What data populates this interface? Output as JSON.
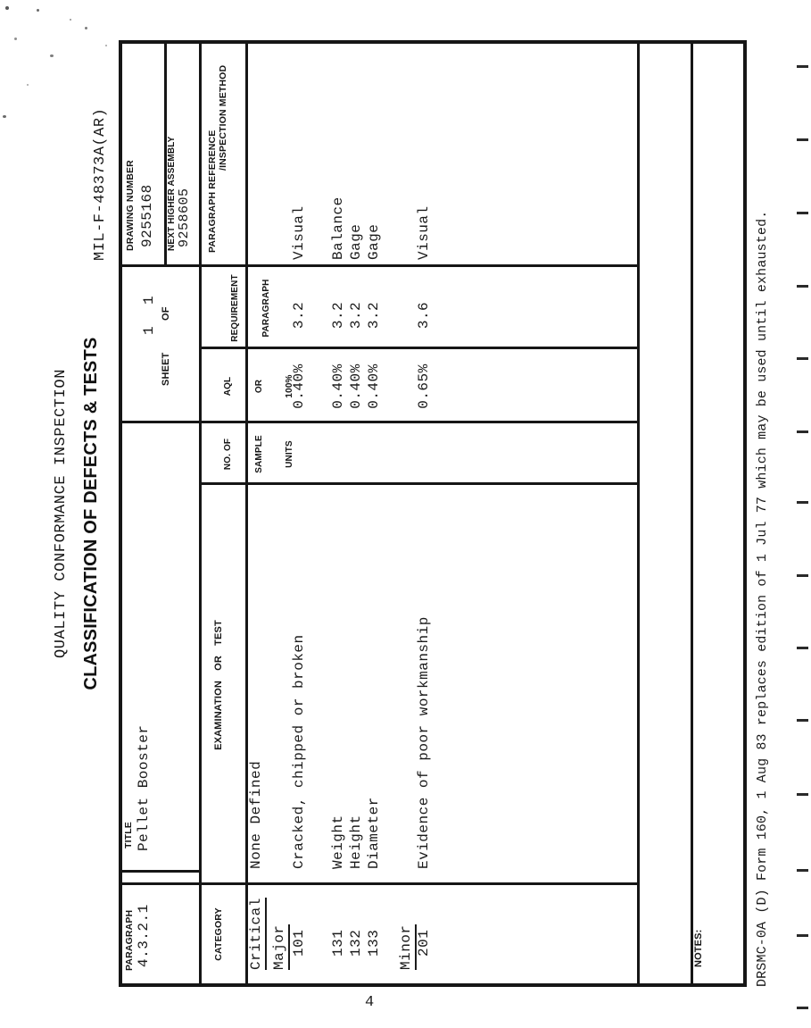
{
  "spec_number": "MIL-F-48373A(AR)",
  "page_number": "4",
  "titles": {
    "line1": "QUALITY CONFORMANCE INSPECTION",
    "line2": "CLASSIFICATION OF DEFECTS & TESTS"
  },
  "header": {
    "paragraph_label": "PARAGRAPH",
    "paragraph_value": "4.3.2.1",
    "title_label": "TITLE",
    "title_value": "Pellet Booster",
    "sheet_label": "SHEET",
    "sheet_value": "1",
    "of_label": "OF",
    "of_value": "1",
    "drawing_number_label": "DRAWING NUMBER",
    "drawing_number_value": "9255168",
    "next_higher_assembly_label": "NEXT HIGHER ASSEMBLY",
    "next_higher_assembly_value": "9258605"
  },
  "columns": {
    "category": "CATEGORY",
    "examination": "EXAMINATION OR TEST",
    "sample": [
      "NO. OF",
      "SAMPLE",
      "UNITS"
    ],
    "aql": [
      "AQL",
      "OR",
      "100%"
    ],
    "requirement": [
      "REQUIREMENT",
      "PARAGRAPH"
    ],
    "reference_line1": "PARAGRAPH REFERENCE",
    "reference_line2": "/INSPECTION METHOD"
  },
  "body_rows": [
    {
      "cat": "Critical",
      "underline": true,
      "indent": 0,
      "exam": "None Defined",
      "aql": "",
      "req": "",
      "ref": ""
    },
    {
      "cat": "Major",
      "underline": true,
      "indent": 0,
      "exam": "",
      "aql": "",
      "req": "",
      "ref": ""
    },
    {
      "cat": "101",
      "underline": false,
      "indent": 1,
      "exam": "Cracked, chipped or broken",
      "aql": "0.40%",
      "req": "3.2",
      "ref": "Visual"
    },
    {
      "cat": "131",
      "underline": false,
      "indent": 1,
      "exam": "Weight",
      "aql": "0.40%",
      "req": "3.2",
      "ref": "Balance"
    },
    {
      "cat": "132",
      "underline": false,
      "indent": 1,
      "exam": "Height",
      "aql": "0.40%",
      "req": "3.2",
      "ref": "Gage"
    },
    {
      "cat": "133",
      "underline": false,
      "indent": 1,
      "exam": "Diameter",
      "aql": "0.40%",
      "req": "3.2",
      "ref": "Gage"
    },
    {
      "cat": "Minor",
      "underline": true,
      "indent": 0,
      "exam": "",
      "aql": "",
      "req": "",
      "ref": ""
    },
    {
      "cat": "201",
      "underline": false,
      "indent": 1,
      "exam": "Evidence of poor workmanship",
      "aql": "0.65%",
      "req": "3.6",
      "ref": "Visual"
    }
  ],
  "notes_label": "NOTES:",
  "footer": "DRSMC-0A (D) Form 160, 1 Aug 83 replaces edition of 1 Jul 77 which may be used until exhausted.",
  "colors": {
    "ink": "#1b1b1b",
    "line": "#161616",
    "paper": "#ffffff"
  }
}
